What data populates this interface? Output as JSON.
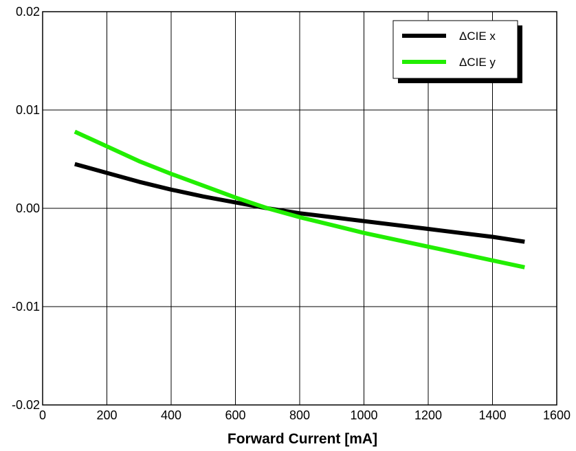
{
  "chart_data": {
    "type": "line",
    "title": "",
    "xlabel": "Forward Current [mA]",
    "ylabel": "",
    "xlim": [
      0,
      1600
    ],
    "ylim": [
      -0.02,
      0.02
    ],
    "x_ticks": [
      0,
      200,
      400,
      600,
      800,
      1000,
      1200,
      1400,
      1600
    ],
    "x_tick_labels": [
      "0",
      "200",
      "400",
      "600",
      "800",
      "1000",
      "1200",
      "1400",
      "1600"
    ],
    "y_ticks": [
      -0.02,
      -0.01,
      0.0,
      0.01,
      0.02
    ],
    "y_tick_labels": [
      "-0.02",
      "-0.01",
      "0.00",
      "0.01",
      "0.02"
    ],
    "grid": true,
    "legend_position": "top-right",
    "series": [
      {
        "name": "ΔCIE x",
        "color": "#000000",
        "x": [
          100,
          200,
          300,
          400,
          500,
          600,
          700,
          800,
          900,
          1000,
          1100,
          1200,
          1300,
          1400,
          1500
        ],
        "y": [
          0.0045,
          0.0036,
          0.0027,
          0.0019,
          0.0012,
          0.0006,
          0.0,
          -0.0005,
          -0.0009,
          -0.0013,
          -0.0017,
          -0.0021,
          -0.0025,
          -0.0029,
          -0.0034
        ]
      },
      {
        "name": "ΔCIE y",
        "color": "#22ee00",
        "x": [
          100,
          200,
          300,
          400,
          500,
          600,
          700,
          800,
          900,
          1000,
          1100,
          1200,
          1300,
          1400,
          1500
        ],
        "y": [
          0.0078,
          0.0063,
          0.0048,
          0.0035,
          0.0023,
          0.0011,
          0.0,
          -0.0009,
          -0.0017,
          -0.0025,
          -0.0032,
          -0.0039,
          -0.0046,
          -0.0053,
          -0.006
        ]
      }
    ]
  }
}
